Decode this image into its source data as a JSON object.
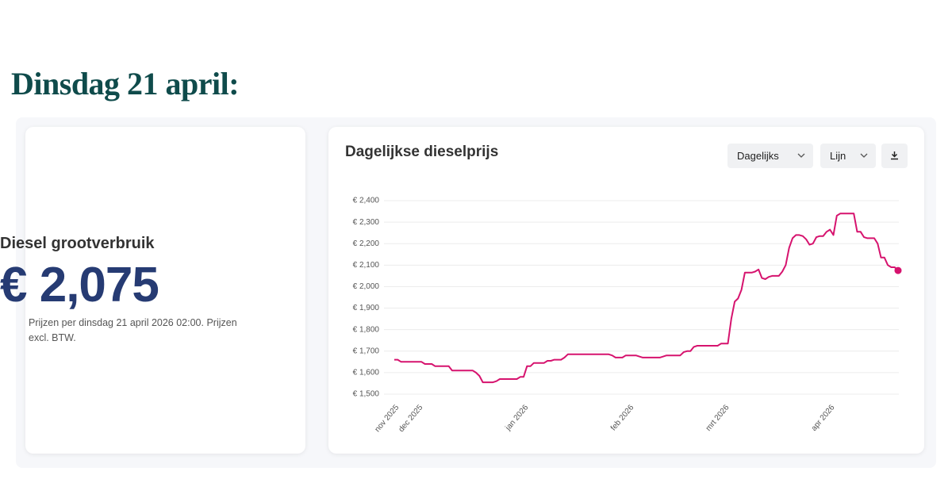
{
  "heading": "Dinsdag 21 april:",
  "card": {
    "title": "Diesel grootverbruik",
    "price": "€ 2,075",
    "note": "Prijzen per dinsdag 21 april 2026 02:00. Prijzen excl. BTW."
  },
  "controls": {
    "interval": "Dagelijks",
    "style": "Lijn"
  },
  "chart_data": {
    "type": "line",
    "title": "Dagelijkse dieselprijs",
    "color": "#d6136e",
    "grid": true,
    "categories": [
      "nov 2025",
      null,
      null,
      null,
      null,
      null,
      null,
      "dec 2025",
      null,
      null,
      null,
      null,
      null,
      null,
      null,
      null,
      null,
      null,
      null,
      null,
      null,
      null,
      null,
      null,
      null,
      null,
      null,
      null,
      null,
      null,
      null,
      null,
      null,
      null,
      null,
      null,
      null,
      null,
      "jan 2026",
      null,
      null,
      null,
      null,
      null,
      null,
      null,
      null,
      null,
      null,
      null,
      null,
      null,
      null,
      null,
      null,
      null,
      null,
      null,
      null,
      null,
      null,
      null,
      null,
      null,
      null,
      null,
      null,
      null,
      null,
      "feb 2026",
      null,
      null,
      null,
      null,
      null,
      null,
      null,
      null,
      null,
      null,
      null,
      null,
      null,
      null,
      null,
      null,
      null,
      null,
      null,
      null,
      null,
      null,
      null,
      null,
      null,
      null,
      null,
      "mrt 2026",
      null,
      null,
      null,
      null,
      null,
      null,
      null,
      null,
      null,
      null,
      null,
      null,
      null,
      null,
      null,
      null,
      null,
      null,
      null,
      null,
      null,
      null,
      null,
      null,
      null,
      null,
      null,
      null,
      null,
      null,
      "apr 2026",
      null,
      null,
      null,
      null,
      null,
      null,
      null,
      null,
      null,
      null,
      null,
      null,
      null,
      null,
      null,
      null,
      null,
      null,
      null,
      null
    ],
    "values": [
      1.66,
      1.66,
      1.65,
      1.65,
      1.65,
      1.65,
      1.65,
      1.65,
      1.65,
      1.64,
      1.64,
      1.64,
      1.63,
      1.63,
      1.63,
      1.63,
      1.63,
      1.61,
      1.61,
      1.61,
      1.61,
      1.61,
      1.61,
      1.61,
      1.6,
      1.585,
      1.555,
      1.555,
      1.555,
      1.555,
      1.56,
      1.57,
      1.57,
      1.57,
      1.57,
      1.57,
      1.57,
      1.58,
      1.58,
      1.63,
      1.63,
      1.645,
      1.645,
      1.645,
      1.645,
      1.655,
      1.655,
      1.66,
      1.66,
      1.66,
      1.67,
      1.685,
      1.685,
      1.685,
      1.685,
      1.685,
      1.685,
      1.685,
      1.685,
      1.685,
      1.685,
      1.685,
      1.685,
      1.685,
      1.68,
      1.67,
      1.67,
      1.67,
      1.68,
      1.68,
      1.68,
      1.68,
      1.675,
      1.67,
      1.67,
      1.67,
      1.67,
      1.67,
      1.67,
      1.675,
      1.68,
      1.68,
      1.68,
      1.68,
      1.68,
      1.695,
      1.7,
      1.7,
      1.72,
      1.725,
      1.725,
      1.725,
      1.725,
      1.725,
      1.725,
      1.725,
      1.735,
      1.735,
      1.735,
      1.85,
      1.93,
      1.945,
      1.985,
      2.065,
      2.065,
      2.065,
      2.07,
      2.08,
      2.04,
      2.035,
      2.045,
      2.05,
      2.05,
      2.05,
      2.07,
      2.1,
      2.18,
      2.225,
      2.24,
      2.24,
      2.235,
      2.22,
      2.195,
      2.2,
      2.23,
      2.235,
      2.235,
      2.255,
      2.265,
      2.24,
      2.33,
      2.34,
      2.34,
      2.34,
      2.34,
      2.34,
      2.255,
      2.255,
      2.23,
      2.225,
      2.225,
      2.225,
      2.2,
      2.135,
      2.135,
      2.1,
      2.09,
      2.09,
      2.075
    ],
    "ylim": [
      1.5,
      2.4
    ],
    "yticks": [
      {
        "value": 1.5,
        "label": "€ 1,500"
      },
      {
        "value": 1.6,
        "label": "€ 1,600"
      },
      {
        "value": 1.7,
        "label": "€ 1,700"
      },
      {
        "value": 1.8,
        "label": "€ 1,800"
      },
      {
        "value": 1.9,
        "label": "€ 1,900"
      },
      {
        "value": 2.0,
        "label": "€ 2,000"
      },
      {
        "value": 2.1,
        "label": "€ 2,100"
      },
      {
        "value": 2.2,
        "label": "€ 2,200"
      },
      {
        "value": 2.3,
        "label": "€ 2,300"
      },
      {
        "value": 2.4,
        "label": "€ 2,400"
      }
    ]
  }
}
